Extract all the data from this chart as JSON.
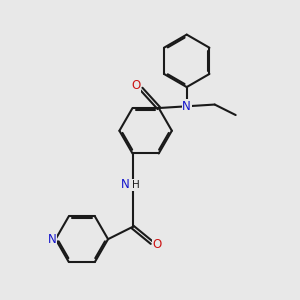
{
  "bg_color": "#e8e8e8",
  "bond_color": "#1a1a1a",
  "N_color": "#1414cc",
  "O_color": "#cc1414",
  "lw": 1.5,
  "dbo": 0.018,
  "fs": 8.5,
  "fs_small": 7.5,
  "xlim": [
    0.0,
    3.0
  ],
  "ylim": [
    -0.3,
    3.1
  ]
}
